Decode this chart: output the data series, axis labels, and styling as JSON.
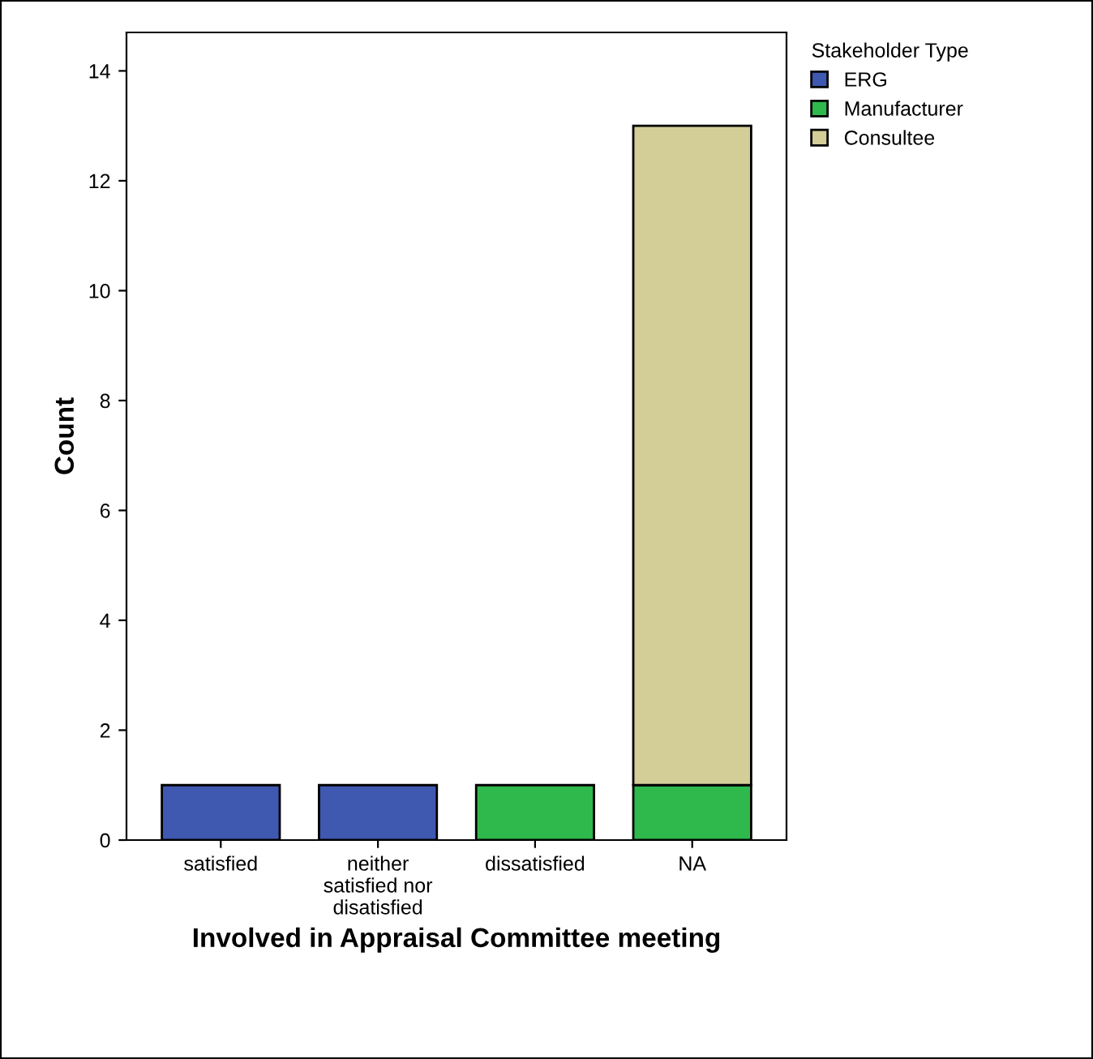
{
  "chart_data": {
    "type": "bar",
    "stacked": true,
    "xlabel": "Involved in Appraisal Committee meeting",
    "ylabel": "Count",
    "legend_title": "Stakeholder Type",
    "categories": [
      "satisfied",
      "neither\nsatisfied nor\ndisatisfied",
      "dissatisfied",
      "NA"
    ],
    "series": [
      {
        "name": "ERG",
        "color": "#3f58b0",
        "values": [
          1,
          1,
          null,
          null
        ]
      },
      {
        "name": "Manufacturer",
        "color": "#2fb84c",
        "values": [
          null,
          null,
          1,
          1
        ]
      },
      {
        "name": "Consultee",
        "color": "#d3ce98",
        "values": [
          null,
          null,
          null,
          12
        ]
      }
    ],
    "ylim": [
      0,
      14.7
    ],
    "yticks": [
      0,
      2,
      4,
      6,
      8,
      10,
      12,
      14
    ],
    "grid": false,
    "legend": "top right"
  }
}
